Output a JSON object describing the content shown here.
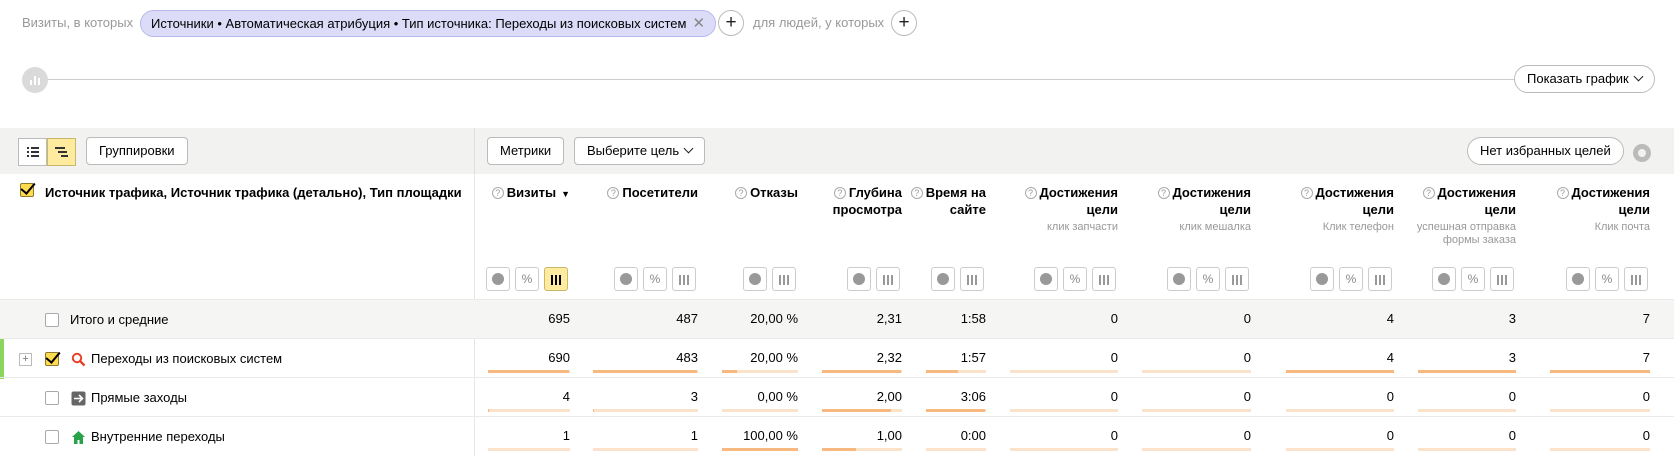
{
  "segment": {
    "visits_label": "Визиты, в которых",
    "chip_label": "Источники • Автоматическая атрибуция • Тип источника: Переходы из поисковых систем",
    "people_label": "для людей, у которых"
  },
  "graph": {
    "show_button": "Показать график"
  },
  "toolbar": {
    "groupings": "Группировки",
    "metrics": "Метрики",
    "choose_goal": "Выберите цель",
    "no_favorites": "Нет избранных целей"
  },
  "table": {
    "dimension_header": "Источник трафика, Источник трафика (детально), Тип площадки",
    "columns": [
      {
        "title": "Визиты",
        "sub": ""
      },
      {
        "title": "Посетители",
        "sub": ""
      },
      {
        "title": "Отказы",
        "sub": ""
      },
      {
        "title": "Глубина просмотра",
        "sub": ""
      },
      {
        "title": "Время на сайте",
        "sub": ""
      },
      {
        "title": "Достижения цели",
        "sub": "клик запчасти"
      },
      {
        "title": "Достижения цели",
        "sub": "клик мешалка"
      },
      {
        "title": "Достижения цели",
        "sub": "Клик телефон"
      },
      {
        "title": "Достижения цели",
        "sub": "успешная отправка формы заказа"
      },
      {
        "title": "Достижения цели",
        "sub": "Клик почта"
      }
    ],
    "rows": [
      {
        "label": "Итого и средние",
        "values": [
          "695",
          "487",
          "20,00 %",
          "2,31",
          "1:58",
          "0",
          "0",
          "4",
          "3",
          "7"
        ]
      },
      {
        "label": "Переходы из поисковых систем",
        "values": [
          "690",
          "483",
          "20,00 %",
          "2,32",
          "1:57",
          "0",
          "0",
          "4",
          "3",
          "7"
        ],
        "bars": [
          0.99,
          0.99,
          0.2,
          0.99,
          0.53,
          0,
          0,
          1,
          1,
          1
        ]
      },
      {
        "label": "Прямые заходы",
        "values": [
          "4",
          "3",
          "0,00 %",
          "2,00",
          "3:06",
          "0",
          "0",
          "0",
          "0",
          "0"
        ],
        "bars": [
          0.01,
          0.01,
          0,
          0.86,
          0.99,
          0,
          0,
          0,
          0,
          0
        ]
      },
      {
        "label": "Внутренние переходы",
        "values": [
          "1",
          "1",
          "100,00 %",
          "1,00",
          "0:00",
          "0",
          "0",
          "0",
          "0",
          "0"
        ],
        "bars": [
          0.002,
          0.002,
          1,
          0.43,
          0,
          0,
          0,
          0,
          0,
          0
        ]
      }
    ]
  },
  "colors": {
    "accent": "#ffdb4d",
    "chip": "#dcdcf9",
    "bar": "#f7b980",
    "bar_bg": "#fbe3cb",
    "row_mark": "#8bd45f"
  },
  "icons": [
    "graph-icon",
    "list-view-icon",
    "tree-view-icon",
    "gear-icon",
    "search-engine-icon",
    "direct-arrow-icon",
    "home-icon"
  ]
}
